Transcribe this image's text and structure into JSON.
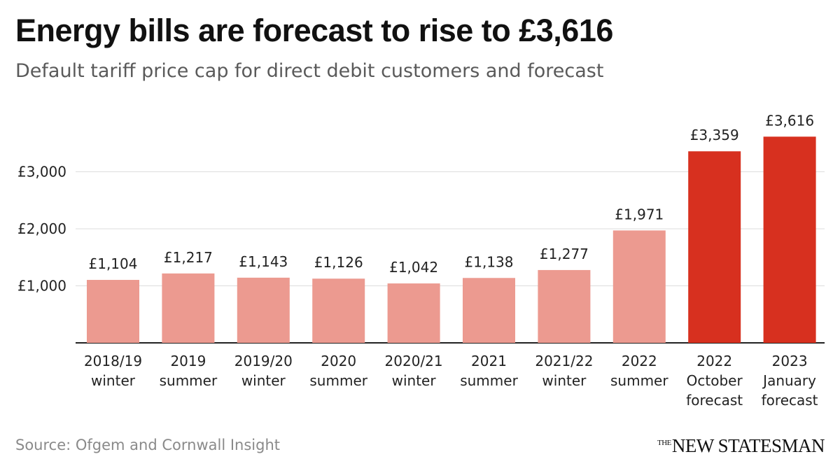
{
  "chart_data": {
    "type": "bar",
    "title": "Energy bills are forecast to rise to £3,616",
    "subtitle": "Default tariff price cap for direct debit customers and forecast",
    "categories": [
      [
        "2018/19",
        "winter"
      ],
      [
        "2019",
        "summer"
      ],
      [
        "2019/20",
        "winter"
      ],
      [
        "2020",
        "summer"
      ],
      [
        "2020/21",
        "winter"
      ],
      [
        "2021",
        "summer"
      ],
      [
        "2021/22",
        "winter"
      ],
      [
        "2022",
        "summer"
      ],
      [
        "2022",
        "October",
        "forecast"
      ],
      [
        "2023",
        "January",
        "forecast"
      ]
    ],
    "values": [
      1104,
      1217,
      1143,
      1126,
      1042,
      1138,
      1277,
      1971,
      3359,
      3616
    ],
    "value_labels": [
      "£1,104",
      "£1,217",
      "£1,143",
      "£1,126",
      "£1,042",
      "£1,138",
      "£1,277",
      "£1,971",
      "£3,359",
      "£3,616"
    ],
    "kinds": [
      "actual",
      "actual",
      "actual",
      "actual",
      "actual",
      "actual",
      "actual",
      "actual",
      "forecast",
      "forecast"
    ],
    "colors": {
      "actual": "#ec9a90",
      "forecast": "#d7301f",
      "grid": "#dddddd",
      "axis": "#222222"
    },
    "y_ticks": [
      1000,
      2000,
      3000
    ],
    "y_tick_labels": [
      "£1,000",
      "£2,000",
      "£3,000"
    ],
    "ylim": [
      0,
      3900
    ],
    "grid": true,
    "xlabel": "",
    "ylabel": ""
  },
  "source": "Source: Ofgem and Cornwall Insight",
  "brand": {
    "prefix": "THE",
    "name": "NEW STATESMAN"
  }
}
